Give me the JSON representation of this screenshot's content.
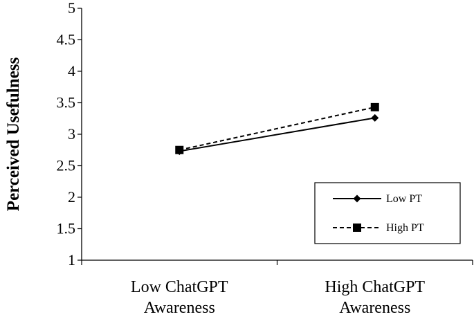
{
  "chart_data": {
    "type": "line",
    "title": "",
    "xlabel": "",
    "ylabel": "Perceived Usefulness",
    "categories": [
      [
        "Low ChatGPT",
        "Awareness"
      ],
      [
        "High ChatGPT",
        "Awareness"
      ]
    ],
    "ylim": [
      1,
      5
    ],
    "yticks": [
      1,
      1.5,
      2,
      2.5,
      3,
      3.5,
      4,
      4.5,
      5
    ],
    "ytick_labels": [
      "1",
      "1.5",
      "2",
      "2.5",
      "3",
      "3.5",
      "4",
      "4.5",
      "5"
    ],
    "grid": false,
    "legend_position": "bottom-right",
    "series": [
      {
        "name": "Low PT",
        "values": [
          2.73,
          3.26
        ],
        "line": "solid",
        "marker": "diamond",
        "color": "#000000"
      },
      {
        "name": "High PT",
        "values": [
          2.75,
          3.43
        ],
        "line": "dashed",
        "marker": "square",
        "color": "#000000"
      }
    ]
  }
}
